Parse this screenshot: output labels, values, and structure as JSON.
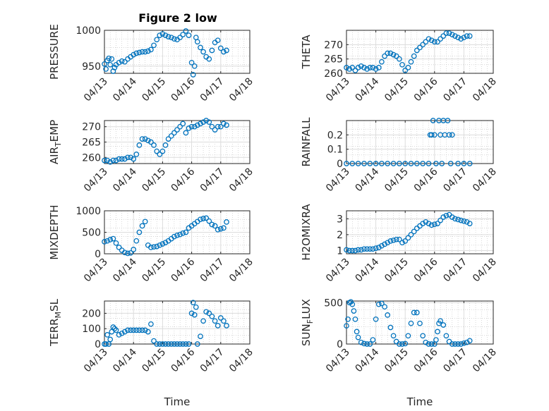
{
  "figure": {
    "title": "Figure 2 low",
    "marker_color": "#0072bd",
    "x_ticks": [
      "04/13",
      "04/14",
      "04/15",
      "04/16",
      "04/17",
      "04/18"
    ],
    "x_label": "Time"
  },
  "chart_data": [
    {
      "type": "scatter",
      "title": "Figure 2 low",
      "ylabel": "PRESSURE",
      "xlim": [
        0,
        5
      ],
      "ylim": [
        940,
        1000
      ],
      "yticks": [
        "950",
        "1000"
      ],
      "grid": true,
      "x": [
        0.0,
        0.05,
        0.1,
        0.15,
        0.2,
        0.25,
        0.3,
        0.35,
        0.4,
        0.5,
        0.6,
        0.7,
        0.8,
        0.9,
        1.0,
        1.1,
        1.2,
        1.3,
        1.4,
        1.5,
        1.6,
        1.7,
        1.8,
        1.9,
        2.0,
        2.1,
        2.2,
        2.3,
        2.4,
        2.5,
        2.6,
        2.7,
        2.8,
        2.9,
        3.0,
        3.05,
        3.1,
        3.15,
        3.2,
        3.3,
        3.4,
        3.5,
        3.6,
        3.7,
        3.8,
        3.9,
        4.0,
        4.1,
        4.2
      ],
      "values": [
        953,
        946,
        958,
        961,
        952,
        960,
        943,
        948,
        952,
        955,
        957,
        956,
        960,
        963,
        966,
        968,
        969,
        970,
        970,
        971,
        973,
        979,
        987,
        993,
        995,
        993,
        991,
        990,
        988,
        987,
        990,
        994,
        999,
        993,
        955,
        938,
        950,
        990,
        984,
        976,
        970,
        963,
        960,
        972,
        983,
        986,
        975,
        970,
        972
      ]
    },
    {
      "type": "scatter",
      "ylabel": "THETA",
      "xlim": [
        0,
        5
      ],
      "ylim": [
        260,
        275
      ],
      "yticks": [
        "260",
        "265",
        "270"
      ],
      "grid": true,
      "x": [
        0.0,
        0.1,
        0.2,
        0.3,
        0.4,
        0.5,
        0.6,
        0.7,
        0.8,
        0.9,
        1.0,
        1.1,
        1.2,
        1.3,
        1.4,
        1.5,
        1.6,
        1.7,
        1.8,
        1.9,
        2.0,
        2.1,
        2.2,
        2.3,
        2.4,
        2.5,
        2.6,
        2.7,
        2.8,
        2.9,
        3.0,
        3.1,
        3.2,
        3.3,
        3.4,
        3.5,
        3.6,
        3.7,
        3.8,
        3.9,
        4.0,
        4.1,
        4.2
      ],
      "values": [
        262,
        261.5,
        262,
        261,
        262,
        262.5,
        262,
        261.5,
        262,
        262,
        261.5,
        262,
        264,
        266,
        267,
        267,
        266.5,
        266,
        265,
        263,
        261,
        262,
        264,
        266,
        268,
        269,
        270,
        271,
        272,
        271.5,
        271,
        271,
        272,
        273,
        274,
        274,
        273.5,
        273,
        272.5,
        272,
        272.5,
        273,
        273
      ]
    },
    {
      "type": "scatter",
      "ylabel": "AIR_TEMP",
      "xlim": [
        0,
        5
      ],
      "ylim": [
        258,
        272
      ],
      "yticks": [
        "260",
        "265",
        "270"
      ],
      "grid": true,
      "x": [
        0.0,
        0.1,
        0.2,
        0.3,
        0.4,
        0.5,
        0.6,
        0.7,
        0.8,
        0.9,
        1.0,
        1.1,
        1.2,
        1.3,
        1.4,
        1.5,
        1.6,
        1.7,
        1.8,
        1.9,
        2.0,
        2.1,
        2.2,
        2.3,
        2.4,
        2.5,
        2.6,
        2.7,
        2.8,
        2.9,
        3.0,
        3.1,
        3.2,
        3.3,
        3.4,
        3.5,
        3.6,
        3.7,
        3.8,
        3.9,
        4.0,
        4.1,
        4.2
      ],
      "values": [
        259,
        259,
        258.5,
        259,
        259,
        259.5,
        259.5,
        259.5,
        260,
        260,
        259.5,
        261,
        264,
        266,
        266,
        265.5,
        265,
        264,
        262,
        261,
        262,
        264,
        266,
        267,
        268,
        269,
        270,
        271,
        268,
        269.5,
        270,
        270,
        270.5,
        271,
        271.5,
        272,
        271.5,
        270,
        269,
        270,
        270,
        271,
        270.5
      ]
    },
    {
      "type": "scatter",
      "ylabel": "RAINFALL",
      "xlim": [
        0,
        5
      ],
      "ylim": [
        0,
        0.3
      ],
      "yticks": [
        "0",
        "0.1",
        "0.2"
      ],
      "grid": true,
      "x": [
        0.0,
        0.2,
        0.4,
        0.6,
        0.8,
        1.0,
        1.2,
        1.4,
        1.6,
        1.8,
        2.0,
        2.2,
        2.4,
        2.6,
        2.8,
        2.85,
        2.9,
        2.95,
        3.0,
        3.05,
        3.15,
        3.2,
        3.25,
        3.3,
        3.35,
        3.45,
        3.5,
        3.55,
        3.6,
        3.8,
        4.0,
        4.2
      ],
      "values": [
        0,
        0,
        0,
        0,
        0,
        0,
        0,
        0,
        0,
        0,
        0,
        0,
        0,
        0,
        0,
        0.2,
        0.2,
        0.3,
        0.2,
        0,
        0.3,
        0.2,
        0,
        0.3,
        0.2,
        0.3,
        0.2,
        0,
        0.2,
        0,
        0,
        0
      ]
    },
    {
      "type": "scatter",
      "ylabel": "MIXDEPTH",
      "xlim": [
        0,
        5
      ],
      "ylim": [
        0,
        1000
      ],
      "yticks": [
        "0",
        "500",
        "1000"
      ],
      "grid": true,
      "x": [
        0.0,
        0.1,
        0.2,
        0.3,
        0.4,
        0.5,
        0.6,
        0.7,
        0.8,
        0.9,
        1.0,
        1.1,
        1.2,
        1.3,
        1.4,
        1.5,
        1.6,
        1.7,
        1.8,
        1.9,
        2.0,
        2.1,
        2.2,
        2.3,
        2.4,
        2.5,
        2.6,
        2.7,
        2.8,
        2.9,
        3.0,
        3.1,
        3.2,
        3.3,
        3.4,
        3.5,
        3.6,
        3.7,
        3.8,
        3.9,
        4.0,
        4.1,
        4.2
      ],
      "values": [
        280,
        300,
        330,
        350,
        250,
        150,
        80,
        30,
        10,
        20,
        100,
        300,
        500,
        650,
        750,
        200,
        150,
        160,
        170,
        200,
        230,
        260,
        300,
        350,
        400,
        430,
        450,
        480,
        500,
        600,
        650,
        700,
        750,
        800,
        820,
        830,
        760,
        680,
        650,
        560,
        580,
        600,
        740
      ]
    },
    {
      "type": "scatter",
      "ylabel": "H2OMIXRA",
      "xlim": [
        0,
        5
      ],
      "ylim": [
        0.8,
        3.5
      ],
      "yticks": [
        "1",
        "2",
        "3"
      ],
      "grid": true,
      "x": [
        0.0,
        0.1,
        0.2,
        0.3,
        0.4,
        0.5,
        0.6,
        0.7,
        0.8,
        0.9,
        1.0,
        1.1,
        1.2,
        1.3,
        1.4,
        1.5,
        1.6,
        1.7,
        1.8,
        1.9,
        2.0,
        2.1,
        2.2,
        2.3,
        2.4,
        2.5,
        2.6,
        2.7,
        2.8,
        2.9,
        3.0,
        3.1,
        3.2,
        3.3,
        3.4,
        3.5,
        3.6,
        3.7,
        3.8,
        3.9,
        4.0,
        4.1,
        4.2
      ],
      "values": [
        1.05,
        1.0,
        1.0,
        1.0,
        1.05,
        1.05,
        1.1,
        1.1,
        1.1,
        1.1,
        1.15,
        1.2,
        1.3,
        1.4,
        1.5,
        1.6,
        1.65,
        1.7,
        1.7,
        1.5,
        1.6,
        1.8,
        2.0,
        2.2,
        2.4,
        2.55,
        2.7,
        2.8,
        2.7,
        2.6,
        2.65,
        2.7,
        2.9,
        3.1,
        3.2,
        3.25,
        3.1,
        3.0,
        2.95,
        2.9,
        2.85,
        2.8,
        2.7
      ]
    },
    {
      "type": "scatter",
      "ylabel": "TERR_MSL",
      "xlim": [
        0,
        5
      ],
      "ylim": [
        0,
        280
      ],
      "yticks": [
        "0",
        "100",
        "200"
      ],
      "grid": true,
      "x": [
        0.0,
        0.05,
        0.1,
        0.15,
        0.2,
        0.25,
        0.3,
        0.35,
        0.4,
        0.5,
        0.6,
        0.7,
        0.8,
        0.9,
        1.0,
        1.1,
        1.2,
        1.3,
        1.4,
        1.5,
        1.6,
        1.7,
        1.8,
        1.9,
        2.0,
        2.1,
        2.2,
        2.3,
        2.4,
        2.5,
        2.6,
        2.7,
        2.8,
        2.9,
        3.0,
        3.05,
        3.1,
        3.15,
        3.2,
        3.3,
        3.4,
        3.5,
        3.6,
        3.7,
        3.8,
        3.9,
        4.0,
        4.1,
        4.2
      ],
      "values": [
        0,
        0,
        60,
        0,
        30,
        80,
        110,
        100,
        90,
        60,
        70,
        80,
        90,
        90,
        90,
        90,
        90,
        90,
        90,
        80,
        130,
        20,
        0,
        0,
        0,
        0,
        0,
        0,
        0,
        0,
        0,
        0,
        0,
        0,
        200,
        270,
        190,
        240,
        0,
        50,
        150,
        210,
        200,
        180,
        150,
        120,
        170,
        150,
        120
      ]
    },
    {
      "type": "scatter",
      "ylabel": "SUN_FLUX",
      "xlim": [
        0,
        5
      ],
      "ylim": [
        0,
        520
      ],
      "yticks": [
        "0",
        "500"
      ],
      "grid": true,
      "x": [
        0.0,
        0.05,
        0.1,
        0.15,
        0.2,
        0.25,
        0.3,
        0.35,
        0.4,
        0.5,
        0.6,
        0.7,
        0.8,
        0.9,
        1.0,
        1.1,
        1.2,
        1.3,
        1.4,
        1.5,
        1.6,
        1.7,
        1.8,
        1.9,
        2.0,
        2.1,
        2.2,
        2.3,
        2.4,
        2.5,
        2.6,
        2.7,
        2.8,
        2.9,
        3.0,
        3.05,
        3.1,
        3.15,
        3.2,
        3.3,
        3.4,
        3.5,
        3.6,
        3.7,
        3.8,
        3.9,
        4.0,
        4.1,
        4.2
      ],
      "values": [
        220,
        300,
        500,
        510,
        480,
        400,
        300,
        150,
        80,
        20,
        5,
        0,
        0,
        50,
        300,
        480,
        490,
        450,
        350,
        200,
        100,
        30,
        0,
        0,
        5,
        100,
        250,
        380,
        380,
        250,
        100,
        20,
        0,
        0,
        0,
        50,
        150,
        250,
        280,
        230,
        100,
        30,
        0,
        0,
        0,
        0,
        10,
        20,
        40
      ]
    }
  ]
}
